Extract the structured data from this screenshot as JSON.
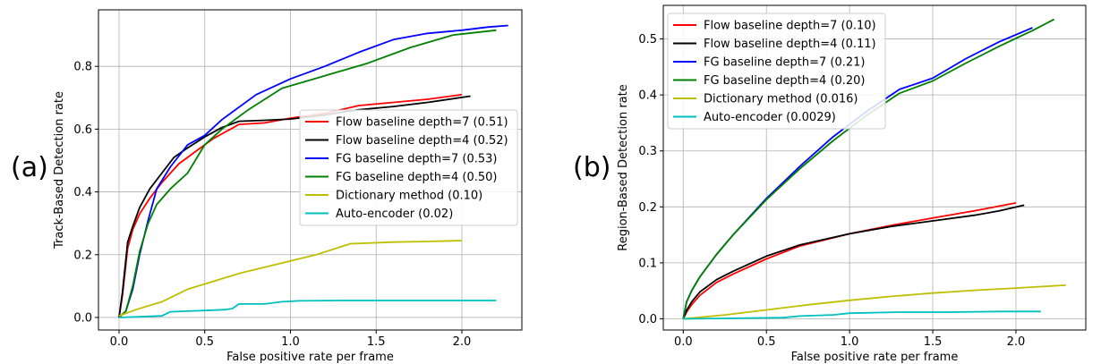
{
  "chart_data": [
    {
      "panel_label": "(a)",
      "type": "line",
      "xlabel": "False positive rate per frame",
      "ylabel": "Track-Based Detection rate",
      "xlim": [
        -0.12,
        2.35
      ],
      "ylim": [
        -0.04,
        0.98
      ],
      "x_ticks": [
        0.0,
        0.5,
        1.0,
        1.5,
        2.0
      ],
      "y_ticks": [
        0.0,
        0.2,
        0.4,
        0.6,
        0.8
      ],
      "x_tick_labels": [
        "0.0",
        "0.5",
        "1.0",
        "1.5",
        "2.0"
      ],
      "y_tick_labels": [
        "0.0",
        "0.2",
        "0.4",
        "0.6",
        "0.8"
      ],
      "grid": true,
      "legend_position": "center-right",
      "series": [
        {
          "name": "Flow baseline depth=7 (0.51)",
          "color": "#ff0000",
          "x": [
            0,
            0.02,
            0.05,
            0.08,
            0.12,
            0.18,
            0.25,
            0.35,
            0.45,
            0.55,
            0.65,
            0.7,
            0.85,
            1.0,
            1.2,
            1.4,
            1.6,
            1.8,
            2.0
          ],
          "y": [
            0,
            0.07,
            0.22,
            0.28,
            0.33,
            0.38,
            0.43,
            0.49,
            0.53,
            0.57,
            0.6,
            0.615,
            0.62,
            0.635,
            0.65,
            0.675,
            0.685,
            0.695,
            0.71
          ]
        },
        {
          "name": "Flow baseline depth=4 (0.52)",
          "color": "#000000",
          "x": [
            0,
            0.02,
            0.05,
            0.08,
            0.12,
            0.18,
            0.25,
            0.32,
            0.4,
            0.5,
            0.6,
            0.7,
            0.85,
            1.0,
            1.2,
            1.4,
            1.6,
            1.8,
            2.05
          ],
          "y": [
            0,
            0.08,
            0.24,
            0.29,
            0.35,
            0.41,
            0.46,
            0.51,
            0.54,
            0.575,
            0.605,
            0.625,
            0.628,
            0.632,
            0.645,
            0.662,
            0.672,
            0.685,
            0.705
          ]
        },
        {
          "name": "FG baseline depth=7 (0.53)",
          "color": "#0000ff",
          "x": [
            0,
            0.04,
            0.08,
            0.12,
            0.17,
            0.22,
            0.3,
            0.4,
            0.5,
            0.6,
            0.8,
            1.0,
            1.2,
            1.4,
            1.6,
            1.8,
            2.0,
            2.15,
            2.27
          ],
          "y": [
            0,
            0.02,
            0.09,
            0.2,
            0.31,
            0.41,
            0.48,
            0.55,
            0.58,
            0.63,
            0.71,
            0.76,
            0.8,
            0.845,
            0.885,
            0.905,
            0.915,
            0.925,
            0.93
          ]
        },
        {
          "name": "FG baseline depth=4 (0.50)",
          "color": "#008000",
          "x": [
            0,
            0.04,
            0.08,
            0.12,
            0.17,
            0.22,
            0.3,
            0.4,
            0.5,
            0.6,
            0.75,
            0.95,
            1.2,
            1.45,
            1.7,
            1.95,
            2.2
          ],
          "y": [
            0,
            0.02,
            0.1,
            0.21,
            0.3,
            0.36,
            0.41,
            0.46,
            0.55,
            0.6,
            0.66,
            0.73,
            0.77,
            0.81,
            0.86,
            0.9,
            0.915
          ]
        },
        {
          "name": "Dictionary method (0.10)",
          "color": "#bfbf00",
          "x": [
            0,
            0.1,
            0.25,
            0.4,
            0.55,
            0.7,
            0.85,
            1.0,
            1.15,
            1.35,
            1.6,
            1.8,
            2.0
          ],
          "y": [
            0.005,
            0.025,
            0.05,
            0.09,
            0.115,
            0.14,
            0.16,
            0.18,
            0.2,
            0.235,
            0.24,
            0.242,
            0.245
          ]
        },
        {
          "name": "Auto-encoder (0.02)",
          "color": "#00bfbf",
          "x": [
            0,
            0.25,
            0.3,
            0.4,
            0.5,
            0.62,
            0.66,
            0.7,
            0.85,
            0.95,
            1.05,
            1.3,
            1.6,
            1.9,
            2.2
          ],
          "y": [
            0,
            0.005,
            0.018,
            0.02,
            0.022,
            0.025,
            0.028,
            0.043,
            0.043,
            0.05,
            0.053,
            0.054,
            0.054,
            0.054,
            0.054
          ]
        }
      ]
    },
    {
      "panel_label": "(b)",
      "type": "line",
      "xlabel": "False positive rate per frame",
      "ylabel": "Region-Based Detection rate",
      "xlim": [
        -0.12,
        2.42
      ],
      "ylim": [
        -0.02,
        0.56
      ],
      "x_ticks": [
        0.0,
        0.5,
        1.0,
        1.5,
        2.0
      ],
      "y_ticks": [
        0.0,
        0.1,
        0.2,
        0.3,
        0.4,
        0.5
      ],
      "x_tick_labels": [
        "0.0",
        "0.5",
        "1.0",
        "1.5",
        "2.0"
      ],
      "y_tick_labels": [
        "0.0",
        "0.1",
        "0.2",
        "0.3",
        "0.4",
        "0.5"
      ],
      "grid": true,
      "legend_position": "top-left",
      "series": [
        {
          "name": "Flow baseline depth=7 (0.10)",
          "color": "#ff0000",
          "x": [
            0,
            0.02,
            0.05,
            0.1,
            0.2,
            0.3,
            0.5,
            0.7,
            1.0,
            1.25,
            1.5,
            1.75,
            2.0
          ],
          "y": [
            0,
            0.012,
            0.025,
            0.042,
            0.065,
            0.08,
            0.107,
            0.13,
            0.152,
            0.167,
            0.18,
            0.193,
            0.207
          ]
        },
        {
          "name": "Flow baseline depth=4 (0.11)",
          "color": "#000000",
          "x": [
            0,
            0.02,
            0.05,
            0.1,
            0.2,
            0.3,
            0.5,
            0.7,
            1.0,
            1.25,
            1.5,
            1.75,
            1.9,
            2.05
          ],
          "y": [
            0,
            0.015,
            0.03,
            0.048,
            0.07,
            0.085,
            0.112,
            0.132,
            0.152,
            0.165,
            0.175,
            0.185,
            0.193,
            0.203
          ]
        },
        {
          "name": "FG baseline depth=7 (0.21)",
          "color": "#0000ff",
          "x": [
            0,
            0.02,
            0.05,
            0.1,
            0.2,
            0.3,
            0.5,
            0.7,
            0.9,
            1.1,
            1.3,
            1.5,
            1.7,
            1.9,
            2.1
          ],
          "y": [
            0,
            0.03,
            0.05,
            0.075,
            0.115,
            0.15,
            0.215,
            0.272,
            0.325,
            0.37,
            0.41,
            0.43,
            0.465,
            0.495,
            0.52
          ]
        },
        {
          "name": "FG baseline depth=4 (0.20)",
          "color": "#008000",
          "x": [
            0,
            0.02,
            0.05,
            0.1,
            0.2,
            0.3,
            0.5,
            0.7,
            0.9,
            1.1,
            1.3,
            1.5,
            1.7,
            1.9,
            2.1,
            2.23
          ],
          "y": [
            0,
            0.03,
            0.05,
            0.075,
            0.115,
            0.15,
            0.213,
            0.268,
            0.318,
            0.363,
            0.403,
            0.425,
            0.457,
            0.487,
            0.515,
            0.535
          ]
        },
        {
          "name": "Dictionary method (0.016)",
          "color": "#bfbf00",
          "x": [
            0,
            0.25,
            0.5,
            0.75,
            1.0,
            1.25,
            1.5,
            1.75,
            2.0,
            2.3
          ],
          "y": [
            0,
            0.007,
            0.016,
            0.025,
            0.033,
            0.04,
            0.046,
            0.051,
            0.055,
            0.06
          ]
        },
        {
          "name": "Auto-encoder (0.0029)",
          "color": "#00bfbf",
          "x": [
            0,
            0.3,
            0.6,
            0.7,
            0.9,
            1.0,
            1.3,
            1.6,
            1.9,
            2.15
          ],
          "y": [
            0,
            0.001,
            0.002,
            0.005,
            0.007,
            0.01,
            0.012,
            0.012,
            0.013,
            0.013
          ]
        }
      ]
    }
  ]
}
